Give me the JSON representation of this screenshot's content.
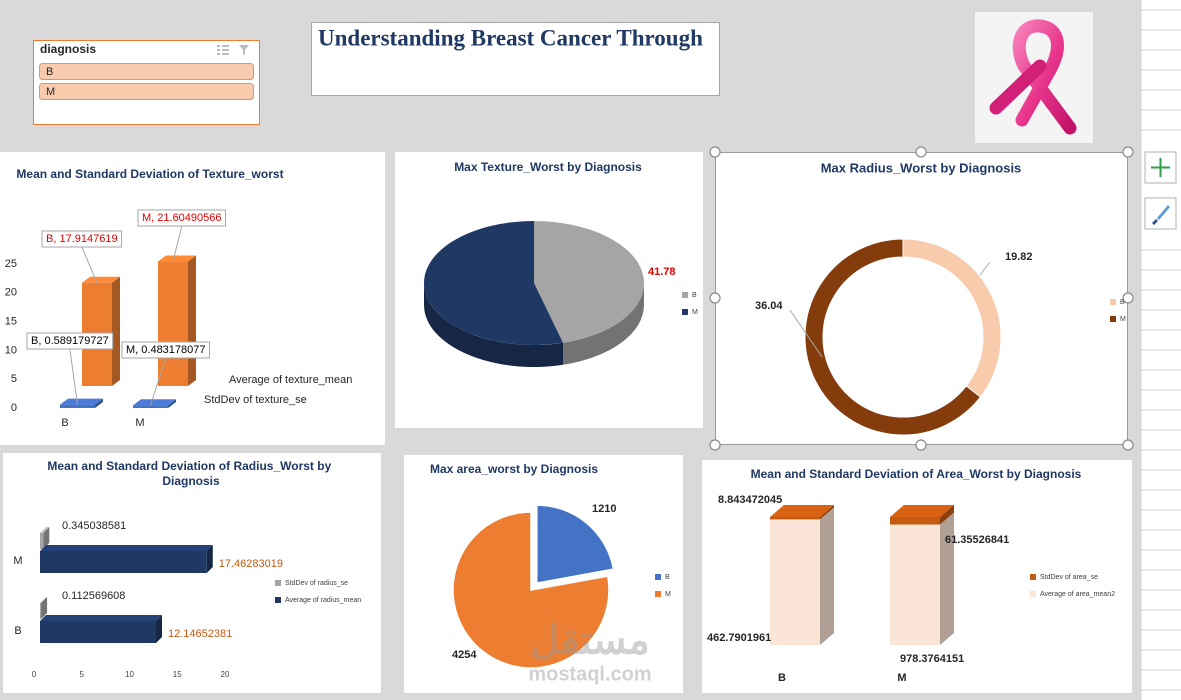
{
  "slicer": {
    "title": "diagnosis",
    "items": [
      "B",
      "M"
    ]
  },
  "header": {
    "title": "Understanding Breast Cancer Through"
  },
  "watermark": {
    "arabic": "مستقل",
    "latin": "mostaql.com"
  },
  "chart_data": [
    {
      "type": "column3d",
      "title": "Mean and Standard Deviation of Texture_worst",
      "categories": [
        "B",
        "M"
      ],
      "series": [
        {
          "name": "StdDev of texture_se",
          "color": "#4472c4",
          "label_color": "#000000",
          "values": [
            0.589179727,
            0.483178077
          ],
          "value_labels": [
            "B, 0.589179727",
            "M, 0.483178077"
          ]
        },
        {
          "name": "Average of texture_mean",
          "color": "#ed7d31",
          "label_color": "#e00000",
          "values": [
            17.9147619,
            21.60490566
          ],
          "value_labels": [
            "B, 17.9147619",
            "M, 21.60490566"
          ]
        }
      ],
      "ylim": [
        0,
        25
      ],
      "yticks": [
        0,
        5,
        10,
        15,
        20,
        25
      ]
    },
    {
      "type": "pie3d",
      "title": "Max Texture_Worst by Diagnosis",
      "categories": [
        "B",
        "M"
      ],
      "values": [
        41.78,
        49.54
      ],
      "value_labels": [
        "41.78",
        null
      ],
      "colors": [
        "#a5a5a5",
        "#203864"
      ],
      "label_color": "#e00000",
      "legend": "right"
    },
    {
      "type": "doughnut",
      "title": "Max Radius_Worst by Diagnosis",
      "categories": [
        "B",
        "M"
      ],
      "values": [
        19.82,
        36.04
      ],
      "colors": [
        "#f8cbad",
        "#843c0c"
      ],
      "legend": "right"
    },
    {
      "type": "hbar3d",
      "title": "Mean and Standard Deviation of Radius_Worst by Diagnosis",
      "categories": [
        "B",
        "M"
      ],
      "series": [
        {
          "name": "StdDev of radius_se",
          "color": "#a5a5a5",
          "label_color": "#262626",
          "values": [
            0.112569608,
            0.345038581
          ]
        },
        {
          "name": "Average of radius_mean",
          "color": "#203864",
          "label_color": "#c55a11",
          "values": [
            12.14652381,
            17.46283019
          ]
        }
      ],
      "xlim": [
        0,
        20
      ],
      "xticks": [
        0,
        5,
        10,
        15,
        20
      ],
      "legend": "right"
    },
    {
      "type": "pie",
      "title": "Max area_worst by Diagnosis",
      "categories": [
        "B",
        "M"
      ],
      "values": [
        1210,
        4254
      ],
      "colors": [
        "#4472c4",
        "#ed7d31"
      ],
      "legend": "right"
    },
    {
      "type": "stacked_column3d",
      "stacking": "percent",
      "title": "Mean and Standard Deviation of Area_Worst by Diagnosis",
      "categories": [
        "B",
        "M"
      ],
      "series": [
        {
          "name": "Average of area_mean2",
          "color": "#fbe5d6",
          "values": [
            462.7901961,
            978.3764151
          ]
        },
        {
          "name": "StdDev of area_se",
          "color": "#c55a11",
          "values": [
            8.843472045,
            61.35526841
          ]
        }
      ],
      "legend": "right"
    }
  ]
}
